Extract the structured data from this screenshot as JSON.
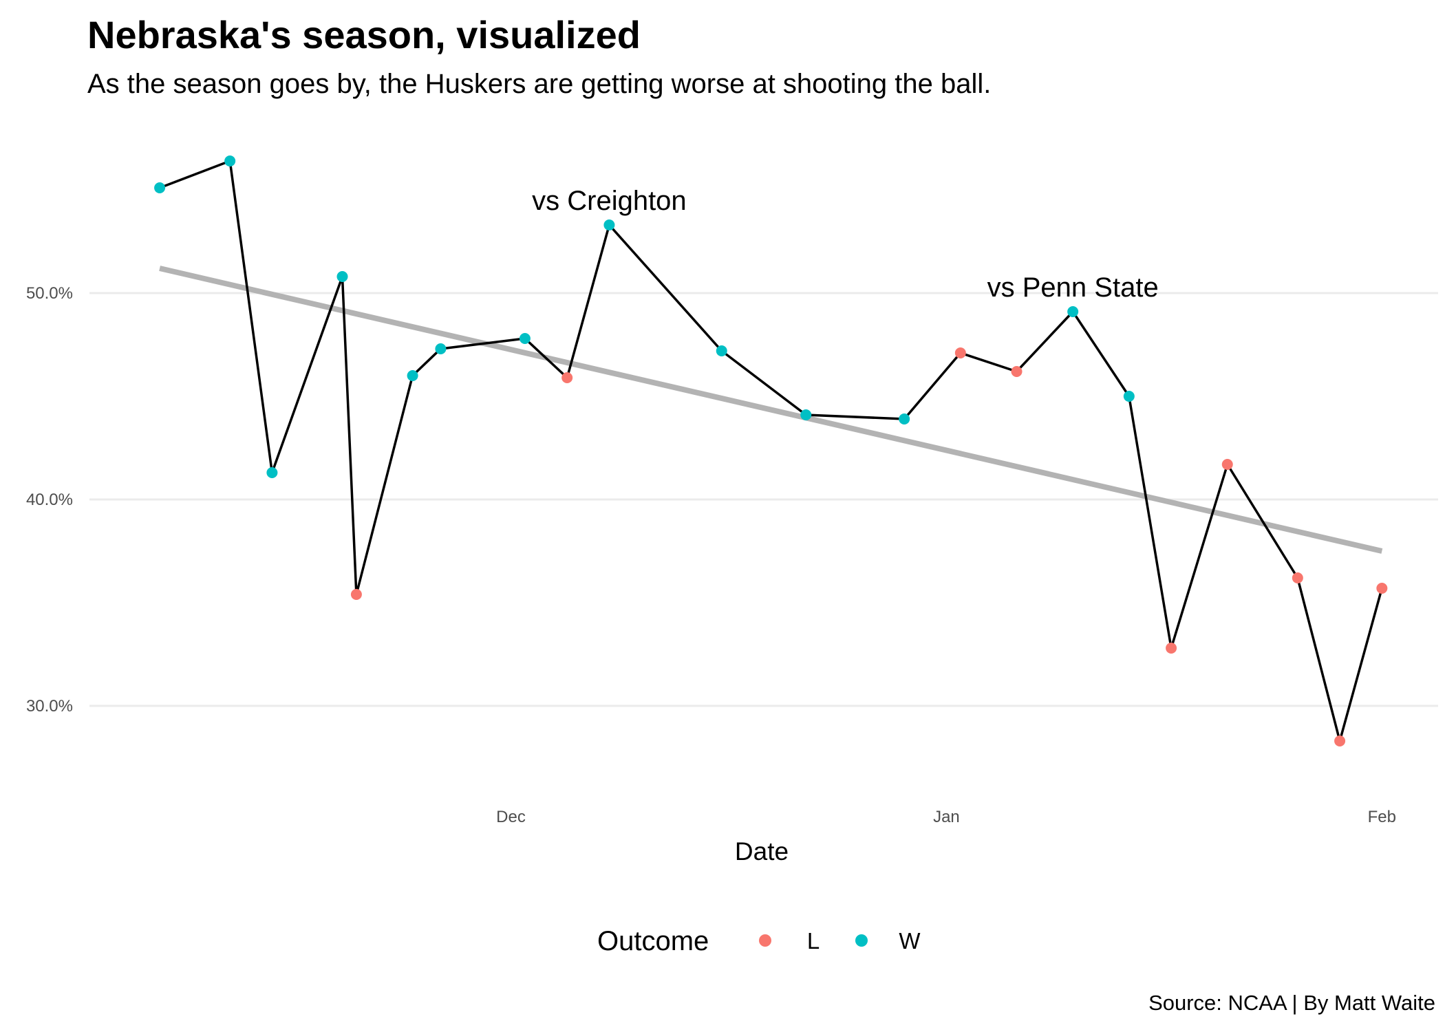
{
  "chart_data": {
    "type": "line",
    "title": "Nebraska's season, visualized",
    "subtitle": "As the season goes by, the Huskers are getting worse at shooting the ball.",
    "caption": "Source: NCAA | By Matt Waite",
    "xlabel": "Date",
    "ylabel": "",
    "x_ticks": [
      {
        "date": "2019-12-01",
        "label": "Dec"
      },
      {
        "date": "2020-01-01",
        "label": "Jan"
      },
      {
        "date": "2020-02-01",
        "label": "Feb"
      }
    ],
    "y_ticks": [
      {
        "value": 0.3,
        "label": "30.0%"
      },
      {
        "value": 0.4,
        "label": "40.0%"
      },
      {
        "value": 0.5,
        "label": "50.0%"
      }
    ],
    "xlim": [
      "2019-11-01",
      "2020-02-05"
    ],
    "ylim": [
      0.262,
      0.582
    ],
    "grid": "horizontal-major",
    "series": [
      {
        "values": [
          {
            "date": "2019-11-06",
            "fg_pct": 0.551,
            "outcome": "W"
          },
          {
            "date": "2019-11-11",
            "fg_pct": 0.564,
            "outcome": "W"
          },
          {
            "date": "2019-11-14",
            "fg_pct": 0.413,
            "outcome": "W"
          },
          {
            "date": "2019-11-19",
            "fg_pct": 0.508,
            "outcome": "W"
          },
          {
            "date": "2019-11-20",
            "fg_pct": 0.354,
            "outcome": "L"
          },
          {
            "date": "2019-11-24",
            "fg_pct": 0.46,
            "outcome": "W"
          },
          {
            "date": "2019-11-26",
            "fg_pct": 0.473,
            "outcome": "W"
          },
          {
            "date": "2019-12-02",
            "fg_pct": 0.478,
            "outcome": "W"
          },
          {
            "date": "2019-12-05",
            "fg_pct": 0.459,
            "outcome": "L"
          },
          {
            "date": "2019-12-08",
            "fg_pct": 0.533,
            "outcome": "W"
          },
          {
            "date": "2019-12-16",
            "fg_pct": 0.472,
            "outcome": "W"
          },
          {
            "date": "2019-12-22",
            "fg_pct": 0.441,
            "outcome": "W"
          },
          {
            "date": "2019-12-29",
            "fg_pct": 0.439,
            "outcome": "W"
          },
          {
            "date": "2020-01-02",
            "fg_pct": 0.471,
            "outcome": "L"
          },
          {
            "date": "2020-01-06",
            "fg_pct": 0.462,
            "outcome": "L"
          },
          {
            "date": "2020-01-10",
            "fg_pct": 0.491,
            "outcome": "W"
          },
          {
            "date": "2020-01-14",
            "fg_pct": 0.45,
            "outcome": "W"
          },
          {
            "date": "2020-01-17",
            "fg_pct": 0.328,
            "outcome": "L"
          },
          {
            "date": "2020-01-21",
            "fg_pct": 0.417,
            "outcome": "L"
          },
          {
            "date": "2020-01-26",
            "fg_pct": 0.362,
            "outcome": "L"
          },
          {
            "date": "2020-01-29",
            "fg_pct": 0.283,
            "outcome": "L"
          },
          {
            "date": "2020-02-01",
            "fg_pct": 0.357,
            "outcome": "L"
          }
        ]
      }
    ],
    "trend_line": {
      "from": {
        "date": "2019-11-06",
        "fg_pct": 0.512
      },
      "to": {
        "date": "2020-02-01",
        "fg_pct": 0.375
      },
      "color": "#b3b3b3"
    },
    "annotations": [
      {
        "text": "vs Creighton",
        "date": "2019-12-08",
        "fg_pct": 0.533
      },
      {
        "text": "vs Penn State",
        "date": "2020-01-10",
        "fg_pct": 0.491
      }
    ],
    "legend": {
      "title": "Outcome",
      "position": "bottom",
      "entries": [
        {
          "label": "L",
          "color": "#F8766D"
        },
        {
          "label": "W",
          "color": "#00BFC4"
        }
      ]
    },
    "colors": {
      "L": "#F8766D",
      "W": "#00BFC4",
      "line": "#000000",
      "grid": "#ebebeb"
    }
  }
}
